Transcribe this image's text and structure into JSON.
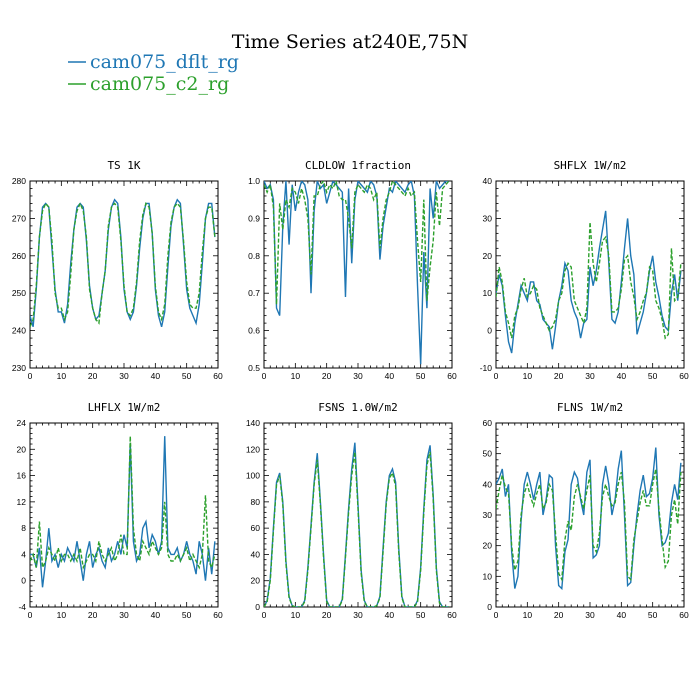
{
  "page_title": "Time Series at240E,75N",
  "legend": [
    {
      "name": "cam075_dflt_rg",
      "color": "#1f77b4",
      "dash": false
    },
    {
      "name": "cam075_c2_rg",
      "color": "#2ca02c",
      "dash": true
    }
  ],
  "chart_data": [
    {
      "type": "line",
      "title": "TS   1K",
      "xlim": [
        0,
        60
      ],
      "ylim": [
        230,
        280
      ],
      "xticks": [
        0,
        10,
        20,
        30,
        40,
        50,
        60
      ],
      "yticks": [
        230,
        240,
        250,
        260,
        270,
        280
      ],
      "x": [
        0,
        1,
        2,
        3,
        4,
        5,
        6,
        7,
        8,
        9,
        10,
        11,
        12,
        13,
        14,
        15,
        16,
        17,
        18,
        19,
        20,
        21,
        22,
        23,
        24,
        25,
        26,
        27,
        28,
        29,
        30,
        31,
        32,
        33,
        34,
        35,
        36,
        37,
        38,
        39,
        40,
        41,
        42,
        43,
        44,
        45,
        46,
        47,
        48,
        49,
        50,
        51,
        52,
        53,
        54,
        55,
        56,
        57,
        58,
        59
      ],
      "series": [
        {
          "name": "cam075_dflt_rg",
          "values": [
            244,
            241,
            251,
            265,
            273,
            274,
            273,
            262,
            251,
            245,
            245,
            242,
            247,
            258,
            267,
            273,
            274,
            273,
            264,
            252,
            246,
            243,
            244,
            250,
            256,
            267,
            273,
            275,
            274,
            265,
            251,
            245,
            243,
            245,
            252,
            262,
            270,
            274,
            274,
            266,
            251,
            244,
            241,
            245,
            257,
            268,
            273,
            275,
            274,
            263,
            251,
            246,
            244,
            242,
            247,
            258,
            270,
            274,
            274,
            265
          ]
        },
        {
          "name": "cam075_c2_rg",
          "values": [
            241,
            243,
            252,
            265,
            272,
            274,
            273,
            264,
            250,
            246,
            246,
            243,
            245,
            255,
            267,
            272,
            274,
            272,
            265,
            251,
            246,
            243,
            242,
            250,
            256,
            268,
            273,
            274,
            273,
            264,
            252,
            245,
            244,
            246,
            253,
            264,
            271,
            274,
            273,
            266,
            252,
            245,
            243,
            247,
            260,
            269,
            273,
            274,
            273,
            264,
            253,
            247,
            246,
            246,
            250,
            261,
            270,
            273,
            273,
            265
          ]
        }
      ]
    },
    {
      "type": "line",
      "title": "CLDLOW   1fraction",
      "xlim": [
        0,
        60
      ],
      "ylim": [
        0.5,
        1.0
      ],
      "xticks": [
        0,
        10,
        20,
        30,
        40,
        50,
        60
      ],
      "yticks": [
        0.5,
        0.6,
        0.7,
        0.8,
        0.9,
        1.0
      ],
      "yticklabels": [
        "0.5",
        "0.6",
        "0.7",
        "0.8",
        "0.9",
        "1.0"
      ],
      "x": [
        0,
        1,
        2,
        3,
        4,
        5,
        6,
        7,
        8,
        9,
        10,
        11,
        12,
        13,
        14,
        15,
        16,
        17,
        18,
        19,
        20,
        21,
        22,
        23,
        24,
        25,
        26,
        27,
        28,
        29,
        30,
        31,
        32,
        33,
        34,
        35,
        36,
        37,
        38,
        39,
        40,
        41,
        42,
        43,
        44,
        45,
        46,
        47,
        48,
        49,
        50,
        51,
        52,
        53,
        54,
        55,
        56,
        57,
        58,
        59
      ],
      "series": [
        {
          "name": "cam075_dflt_rg",
          "values": [
            1.0,
            0.98,
            0.99,
            0.95,
            0.66,
            0.64,
            0.88,
            1.0,
            0.83,
            0.99,
            0.92,
            0.97,
            1.0,
            0.99,
            0.95,
            0.7,
            0.92,
            1.0,
            0.98,
            0.99,
            0.94,
            0.97,
            1.0,
            0.99,
            0.98,
            0.97,
            0.69,
            0.98,
            0.78,
            0.95,
            1.0,
            0.99,
            0.98,
            0.97,
            1.0,
            0.99,
            0.96,
            0.79,
            0.88,
            0.93,
            0.98,
            0.97,
            1.0,
            0.99,
            0.98,
            0.97,
            0.99,
            1.0,
            0.96,
            0.72,
            0.51,
            0.81,
            0.66,
            0.98,
            0.9,
            1.0,
            0.98,
            0.99,
            1.0,
            1.0
          ]
        },
        {
          "name": "cam075_c2_rg",
          "values": [
            0.99,
            0.97,
            0.99,
            0.93,
            0.67,
            0.94,
            0.87,
            0.95,
            0.93,
            0.98,
            0.97,
            0.94,
            0.98,
            0.95,
            0.9,
            0.75,
            0.96,
            0.96,
            0.99,
            1.0,
            0.97,
            0.99,
            0.98,
            1.0,
            0.96,
            0.95,
            0.95,
            0.9,
            0.82,
            0.97,
            0.99,
            0.98,
            0.97,
            0.99,
            0.98,
            0.95,
            0.97,
            0.82,
            0.9,
            0.95,
            0.97,
            1.0,
            0.99,
            0.98,
            0.97,
            0.96,
            0.98,
            0.96,
            0.97,
            0.84,
            0.73,
            0.95,
            0.68,
            0.77,
            0.84,
            0.97,
            0.88,
            0.98,
            0.99,
            1.0
          ]
        }
      ]
    },
    {
      "type": "line",
      "title": "SHFLX   1W/m2",
      "xlim": [
        0,
        60
      ],
      "ylim": [
        -10,
        40
      ],
      "xticks": [
        0,
        10,
        20,
        30,
        40,
        50,
        60
      ],
      "yticks": [
        -10,
        0,
        10,
        20,
        30,
        40
      ],
      "x": [
        0,
        1,
        2,
        3,
        4,
        5,
        6,
        7,
        8,
        9,
        10,
        11,
        12,
        13,
        14,
        15,
        16,
        17,
        18,
        19,
        20,
        21,
        22,
        23,
        24,
        25,
        26,
        27,
        28,
        29,
        30,
        31,
        32,
        33,
        34,
        35,
        36,
        37,
        38,
        39,
        40,
        41,
        42,
        43,
        44,
        45,
        46,
        47,
        48,
        49,
        50,
        51,
        52,
        53,
        54,
        55,
        56,
        57,
        58,
        59
      ],
      "series": [
        {
          "name": "cam075_dflt_rg",
          "values": [
            10,
            15,
            12,
            4,
            -3,
            -6,
            2,
            7,
            12,
            10,
            8,
            13,
            13,
            8,
            7,
            3,
            2,
            1,
            -5,
            1,
            8,
            12,
            18,
            16,
            8,
            5,
            3,
            -2,
            2,
            3,
            17,
            12,
            16,
            22,
            27,
            32,
            18,
            3,
            2,
            5,
            13,
            22,
            30,
            20,
            15,
            -1,
            2,
            5,
            10,
            16,
            20,
            13,
            9,
            4,
            1,
            0,
            10,
            15,
            8,
            16
          ]
        },
        {
          "name": "cam075_c2_rg",
          "values": [
            9,
            17,
            13,
            5,
            2,
            -2,
            4,
            6,
            11,
            14,
            9,
            10,
            12,
            11,
            6,
            4,
            2,
            0,
            1,
            3,
            8,
            10,
            16,
            18,
            17,
            8,
            6,
            4,
            2,
            6,
            29,
            18,
            13,
            18,
            24,
            25,
            20,
            5,
            5,
            6,
            11,
            19,
            20,
            13,
            9,
            3,
            5,
            8,
            10,
            17,
            16,
            8,
            6,
            3,
            -2,
            -1,
            22,
            8,
            9,
            18
          ]
        }
      ]
    },
    {
      "type": "line",
      "title": "LHFLX   1W/m2",
      "xlim": [
        0,
        60
      ],
      "ylim": [
        -4,
        24
      ],
      "xticks": [
        0,
        10,
        20,
        30,
        40,
        50,
        60
      ],
      "yticks": [
        -4,
        0,
        4,
        8,
        12,
        16,
        20,
        24
      ],
      "x": [
        0,
        1,
        2,
        3,
        4,
        5,
        6,
        7,
        8,
        9,
        10,
        11,
        12,
        13,
        14,
        15,
        16,
        17,
        18,
        19,
        20,
        21,
        22,
        23,
        24,
        25,
        26,
        27,
        28,
        29,
        30,
        31,
        32,
        33,
        34,
        35,
        36,
        37,
        38,
        39,
        40,
        41,
        42,
        43,
        44,
        45,
        46,
        47,
        48,
        49,
        50,
        51,
        52,
        53,
        54,
        55,
        56,
        57,
        58,
        59
      ],
      "series": [
        {
          "name": "cam075_dflt_rg",
          "values": [
            4,
            4,
            2,
            5,
            -1,
            3,
            8,
            3,
            4,
            2,
            4,
            3,
            5,
            4,
            3,
            6,
            3,
            0,
            4,
            6,
            2,
            4,
            5,
            3,
            2,
            5,
            3,
            4,
            6,
            4,
            7,
            5,
            21,
            6,
            3,
            4,
            8,
            9,
            5,
            7,
            6,
            4,
            6,
            22,
            5,
            4,
            4,
            5,
            3,
            4,
            6,
            4,
            3,
            1,
            6,
            4,
            0,
            5,
            1,
            6
          ]
        },
        {
          "name": "cam075_c2_rg",
          "values": [
            3,
            4,
            2,
            9,
            2,
            3,
            5,
            4,
            3,
            5,
            3,
            4,
            4,
            3,
            4,
            3,
            5,
            2,
            3,
            4,
            4,
            3,
            6,
            4,
            3,
            4,
            5,
            3,
            4,
            7,
            4,
            4,
            22,
            8,
            4,
            3,
            6,
            5,
            4,
            6,
            5,
            4,
            5,
            12,
            4,
            3,
            3,
            4,
            3,
            4,
            5,
            3,
            4,
            3,
            2,
            4,
            13,
            3,
            2,
            4
          ]
        }
      ]
    },
    {
      "type": "line",
      "title": "FSNS   1.0W/m2",
      "xlim": [
        0,
        60
      ],
      "ylim": [
        0,
        140
      ],
      "xticks": [
        0,
        10,
        20,
        30,
        40,
        50,
        60
      ],
      "yticks": [
        0,
        20,
        40,
        60,
        80,
        100,
        120,
        140
      ],
      "x": [
        0,
        1,
        2,
        3,
        4,
        5,
        6,
        7,
        8,
        9,
        10,
        11,
        12,
        13,
        14,
        15,
        16,
        17,
        18,
        19,
        20,
        21,
        22,
        23,
        24,
        25,
        26,
        27,
        28,
        29,
        30,
        31,
        32,
        33,
        34,
        35,
        36,
        37,
        38,
        39,
        40,
        41,
        42,
        43,
        44,
        45,
        46,
        47,
        48,
        49,
        50,
        51,
        52,
        53,
        54,
        55,
        56,
        57,
        58,
        59
      ],
      "series": [
        {
          "name": "cam075_dflt_rg",
          "values": [
            0,
            5,
            22,
            60,
            95,
            102,
            80,
            35,
            8,
            1,
            0,
            0,
            0,
            5,
            30,
            62,
            95,
            117,
            80,
            40,
            5,
            0,
            0,
            0,
            0,
            6,
            40,
            75,
            105,
            125,
            78,
            28,
            5,
            0,
            0,
            0,
            1,
            8,
            45,
            80,
            100,
            105,
            95,
            45,
            8,
            0,
            0,
            0,
            0,
            5,
            30,
            75,
            112,
            123,
            85,
            30,
            4,
            0,
            0,
            0
          ]
        },
        {
          "name": "cam075_c2_rg",
          "values": [
            0,
            4,
            20,
            58,
            93,
            100,
            78,
            33,
            7,
            1,
            0,
            0,
            0,
            4,
            28,
            60,
            93,
            112,
            78,
            38,
            4,
            0,
            0,
            0,
            0,
            5,
            38,
            72,
            100,
            118,
            75,
            26,
            4,
            0,
            0,
            0,
            1,
            7,
            42,
            78,
            98,
            102,
            92,
            42,
            7,
            0,
            0,
            0,
            0,
            4,
            28,
            72,
            108,
            118,
            82,
            28,
            3,
            0,
            0,
            0
          ]
        }
      ]
    },
    {
      "type": "line",
      "title": "FLNS   1W/m2",
      "xlim": [
        0,
        60
      ],
      "ylim": [
        0,
        60
      ],
      "xticks": [
        0,
        10,
        20,
        30,
        40,
        50,
        60
      ],
      "yticks": [
        0,
        10,
        20,
        30,
        40,
        50,
        60
      ],
      "x": [
        0,
        1,
        2,
        3,
        4,
        5,
        6,
        7,
        8,
        9,
        10,
        11,
        12,
        13,
        14,
        15,
        16,
        17,
        18,
        19,
        20,
        21,
        22,
        23,
        24,
        25,
        26,
        27,
        28,
        29,
        30,
        31,
        32,
        33,
        34,
        35,
        36,
        37,
        38,
        39,
        40,
        41,
        42,
        43,
        44,
        45,
        46,
        47,
        48,
        49,
        50,
        51,
        52,
        53,
        54,
        55,
        56,
        57,
        58,
        59
      ],
      "series": [
        {
          "name": "cam075_dflt_rg",
          "values": [
            40,
            42,
            45,
            36,
            40,
            18,
            6,
            10,
            28,
            40,
            44,
            40,
            35,
            40,
            44,
            30,
            35,
            43,
            42,
            20,
            7,
            6,
            18,
            22,
            40,
            44,
            42,
            35,
            30,
            44,
            48,
            16,
            17,
            20,
            40,
            46,
            40,
            30,
            35,
            45,
            51,
            30,
            7,
            8,
            20,
            30,
            38,
            43,
            36,
            37,
            42,
            52,
            30,
            20,
            21,
            24,
            34,
            40,
            35,
            47
          ]
        },
        {
          "name": "cam075_c2_rg",
          "values": [
            32,
            38,
            43,
            39,
            37,
            20,
            12,
            15,
            30,
            37,
            40,
            36,
            33,
            37,
            40,
            32,
            34,
            40,
            38,
            24,
            11,
            9,
            22,
            28,
            25,
            36,
            40,
            36,
            32,
            38,
            43,
            20,
            18,
            24,
            36,
            40,
            36,
            33,
            34,
            40,
            44,
            34,
            10,
            9,
            22,
            28,
            34,
            38,
            33,
            33,
            40,
            45,
            32,
            22,
            13,
            15,
            30,
            35,
            27,
            44
          ]
        }
      ]
    }
  ]
}
